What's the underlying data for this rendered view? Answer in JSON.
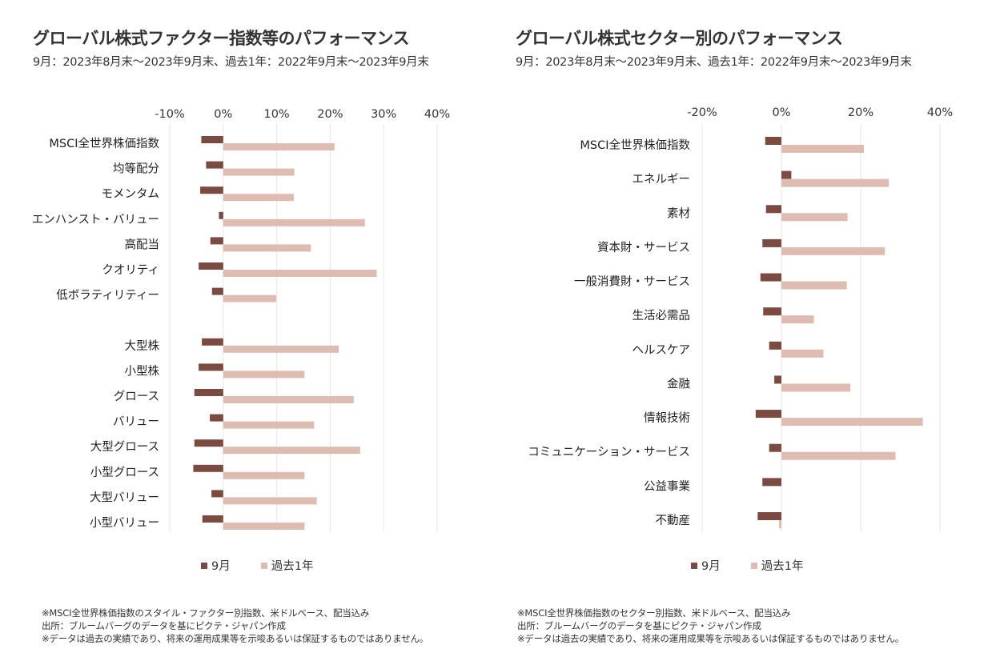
{
  "colors": {
    "sep": "#7b4a40",
    "year": "#dfbcb2",
    "grid": "#e6e6e6"
  },
  "left": {
    "title": "グローバル株式ファクター指数等のパフォーマンス",
    "subtitle": "9月：2023年8月末～2023年9月末、過去1年：2022年9月末～2023年9月末",
    "legend": {
      "sep": "9月",
      "year": "過去1年"
    },
    "notes": [
      "※MSCI全世界株価指数のスタイル・ファクター別指数、米ドルベース、配当込み",
      "出所：ブルームバーグのデータを基にピクテ・ジャパン作成",
      "※データは過去の実績であり、将来の運用成果等を示唆あるいは保証するものではありません。"
    ]
  },
  "right": {
    "title": "グローバル株式セクター別のパフォーマンス",
    "subtitle": "9月：2023年8月末～2023年9月末、過去1年：2022年9月末～2023年9月末",
    "legend": {
      "sep": "9月",
      "year": "過去1年"
    },
    "notes": [
      "※MSCI全世界株価指数のセクター別指数、米ドルベース、配当込み",
      "出所：ブルームバーグのデータを基にピクテ・ジャパン作成",
      "※データは過去の実績であり、将来の運用成果等を示唆あるいは保証するものではありません。"
    ]
  },
  "chart_data": [
    {
      "type": "bar",
      "orientation": "horizontal",
      "title": "グローバル株式ファクター指数等のパフォーマンス",
      "xlim": [
        -10,
        40
      ],
      "xticks": [
        -10,
        0,
        10,
        20,
        30,
        40
      ],
      "tick_labels": [
        "-10%",
        "0%",
        "10%",
        "20%",
        "30%",
        "40%"
      ],
      "grid": true,
      "legend_position": "bottom",
      "categories": [
        "MSCI全世界株価指数",
        "均等配分",
        "モメンタム",
        "エンハンスト・バリュー",
        "高配当",
        "クオリティ",
        "低ボラティリティー",
        "",
        "大型株",
        "小型株",
        "グロース",
        "バリュー",
        "大型グロース",
        "小型グロース",
        "大型バリュー",
        "小型バリュー"
      ],
      "series": [
        {
          "name": "9月",
          "values": [
            -4.1,
            -3.2,
            -4.3,
            -0.8,
            -2.4,
            -4.6,
            -2.1,
            null,
            -4.0,
            -4.6,
            -5.4,
            -2.5,
            -5.4,
            -5.6,
            -2.2,
            -3.9
          ]
        },
        {
          "name": "過去1年",
          "values": [
            20.8,
            13.3,
            13.2,
            26.5,
            16.4,
            28.7,
            9.9,
            null,
            21.6,
            15.2,
            24.4,
            17.0,
            25.6,
            15.2,
            17.5,
            15.2
          ]
        }
      ]
    },
    {
      "type": "bar",
      "orientation": "horizontal",
      "title": "グローバル株式セクター別のパフォーマンス",
      "xlim": [
        -20,
        40
      ],
      "xticks": [
        -20,
        0,
        20,
        40
      ],
      "tick_labels": [
        "-20%",
        "0%",
        "20%",
        "40%"
      ],
      "grid": true,
      "legend_position": "bottom",
      "categories": [
        "MSCI全世界株価指数",
        "エネルギー",
        "素材",
        "資本財・サービス",
        "一般消費財・サービス",
        "生活必需品",
        "ヘルスケア",
        "金融",
        "情報技術",
        "コミュニケーション・サービス",
        "公益事業",
        "不動産"
      ],
      "series": [
        {
          "name": "9月",
          "values": [
            -4.1,
            2.5,
            -3.9,
            -4.8,
            -5.3,
            -4.6,
            -3.1,
            -1.8,
            -6.5,
            -3.1,
            -4.8,
            -6.0
          ]
        },
        {
          "name": "過去1年",
          "values": [
            20.8,
            27.1,
            16.7,
            26.1,
            16.5,
            8.2,
            10.6,
            17.4,
            35.7,
            28.8,
            null,
            -0.6
          ]
        }
      ]
    }
  ]
}
